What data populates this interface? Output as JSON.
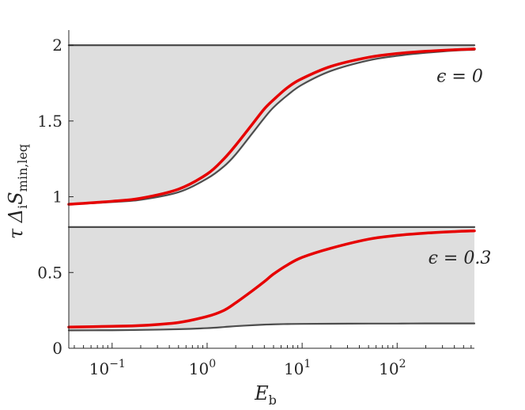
{
  "chart_data": {
    "type": "line",
    "xlabel": "E",
    "xlabel_sub": "b",
    "ylabel": "τ Δ",
    "ylabel_sub1": "i",
    "ylabel_mid": "S",
    "ylabel_sub2": "min,leq",
    "x_scale": "log",
    "xlim": [
      0.035,
      650
    ],
    "ylim": [
      0,
      2.1
    ],
    "x_ticks": [
      {
        "value": 0.1,
        "base": "10",
        "exp": "−1"
      },
      {
        "value": 1,
        "base": "10",
        "exp": "0"
      },
      {
        "value": 10,
        "base": "10",
        "exp": "1"
      },
      {
        "value": 100,
        "base": "10",
        "exp": "2"
      }
    ],
    "y_ticks": [
      {
        "value": 0,
        "label": "0"
      },
      {
        "value": 0.5,
        "label": "0.5"
      },
      {
        "value": 1,
        "label": "1"
      },
      {
        "value": 1.5,
        "label": "1.5"
      },
      {
        "value": 2,
        "label": "2"
      }
    ],
    "grid": false,
    "series": [
      {
        "color": "#e60000",
        "group": "eps0",
        "x": [
          0.035,
          0.1,
          0.2,
          0.5,
          1,
          1.5,
          2,
          3,
          4,
          5,
          7,
          10,
          20,
          50,
          100,
          200,
          400,
          650
        ],
        "y": [
          0.95,
          0.97,
          0.99,
          1.05,
          1.15,
          1.25,
          1.34,
          1.48,
          1.58,
          1.64,
          1.72,
          1.78,
          1.86,
          1.92,
          1.945,
          1.96,
          1.97,
          1.975
        ]
      },
      {
        "color": "#4d4d4d",
        "group": "eps0",
        "x": [
          0.035,
          0.1,
          0.2,
          0.5,
          1,
          1.5,
          2,
          3,
          4,
          5,
          7,
          10,
          20,
          50,
          100,
          200,
          400,
          650
        ],
        "y": [
          0.95,
          0.965,
          0.98,
          1.03,
          1.12,
          1.2,
          1.28,
          1.42,
          1.52,
          1.59,
          1.67,
          1.74,
          1.83,
          1.9,
          1.93,
          1.95,
          1.965,
          1.97
        ]
      },
      {
        "color": "#4d4d4d",
        "group": "eps0",
        "x": [
          0.035,
          650
        ],
        "y": [
          2.0,
          2.0
        ]
      },
      {
        "color": "#e60000",
        "group": "eps03",
        "x": [
          0.035,
          0.1,
          0.2,
          0.5,
          1,
          1.5,
          2,
          3,
          4,
          5,
          7,
          10,
          20,
          50,
          100,
          200,
          400,
          650
        ],
        "y": [
          0.14,
          0.145,
          0.15,
          0.17,
          0.21,
          0.25,
          0.3,
          0.38,
          0.44,
          0.49,
          0.55,
          0.6,
          0.66,
          0.72,
          0.745,
          0.76,
          0.77,
          0.775
        ]
      },
      {
        "color": "#4d4d4d",
        "group": "eps03",
        "x": [
          0.035,
          0.1,
          0.2,
          0.5,
          1,
          1.5,
          2,
          3,
          4,
          5,
          7,
          10,
          20,
          50,
          100,
          200,
          400,
          650
        ],
        "y": [
          0.118,
          0.119,
          0.121,
          0.126,
          0.133,
          0.14,
          0.146,
          0.152,
          0.156,
          0.158,
          0.16,
          0.161,
          0.162,
          0.163,
          0.163,
          0.164,
          0.164,
          0.164
        ]
      },
      {
        "color": "#4d4d4d",
        "group": "eps03",
        "x": [
          0.035,
          650
        ],
        "y": [
          0.8,
          0.8
        ]
      }
    ],
    "shaded_regions": [
      {
        "group": "eps0",
        "upper": 2.0,
        "lower_series": 1,
        "color": "#dedede"
      },
      {
        "group": "eps03",
        "upper": 0.8,
        "lower_series": 4,
        "color": "#dedede"
      }
    ],
    "annotations": [
      {
        "text": "ϵ = 0",
        "x": 150,
        "y": 1.8
      },
      {
        "text": "ϵ = 0.3",
        "x": 150,
        "y": 0.6
      }
    ]
  }
}
